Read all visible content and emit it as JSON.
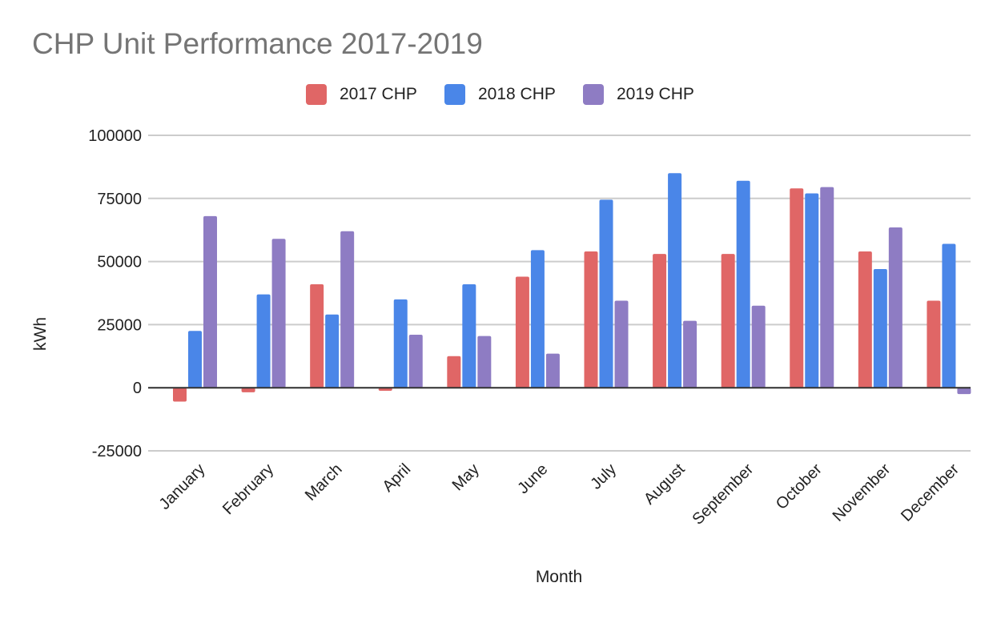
{
  "chart_data": {
    "type": "bar",
    "title": "CHP Unit Performance 2017-2019",
    "xlabel": "Month",
    "ylabel": "kWh",
    "ylim": [
      -25000,
      100000
    ],
    "yticks": [
      100000,
      75000,
      50000,
      25000,
      0,
      -25000
    ],
    "ytick_labels": [
      "100000",
      "75000",
      "50000",
      "25000",
      "0",
      "-25000"
    ],
    "grid": true,
    "legend_position": "top",
    "categories": [
      "January",
      "February",
      "March",
      "April",
      "May",
      "June",
      "July",
      "August",
      "September",
      "October",
      "November",
      "December"
    ],
    "series": [
      {
        "name": "2017 CHP",
        "color": "#e06666",
        "values": [
          -5500,
          -1800,
          41000,
          -1200,
          12500,
          44000,
          54000,
          53000,
          53000,
          79000,
          54000,
          34500
        ]
      },
      {
        "name": "2018 CHP",
        "color": "#4a86e8",
        "values": [
          22500,
          37000,
          29000,
          35000,
          41000,
          54500,
          74500,
          85000,
          82000,
          77000,
          47000,
          57000
        ]
      },
      {
        "name": "2019 CHP",
        "color": "#8e7cc3",
        "values": [
          68000,
          59000,
          62000,
          21000,
          20500,
          13500,
          34500,
          26500,
          32500,
          79500,
          63500,
          -2500
        ]
      }
    ]
  }
}
